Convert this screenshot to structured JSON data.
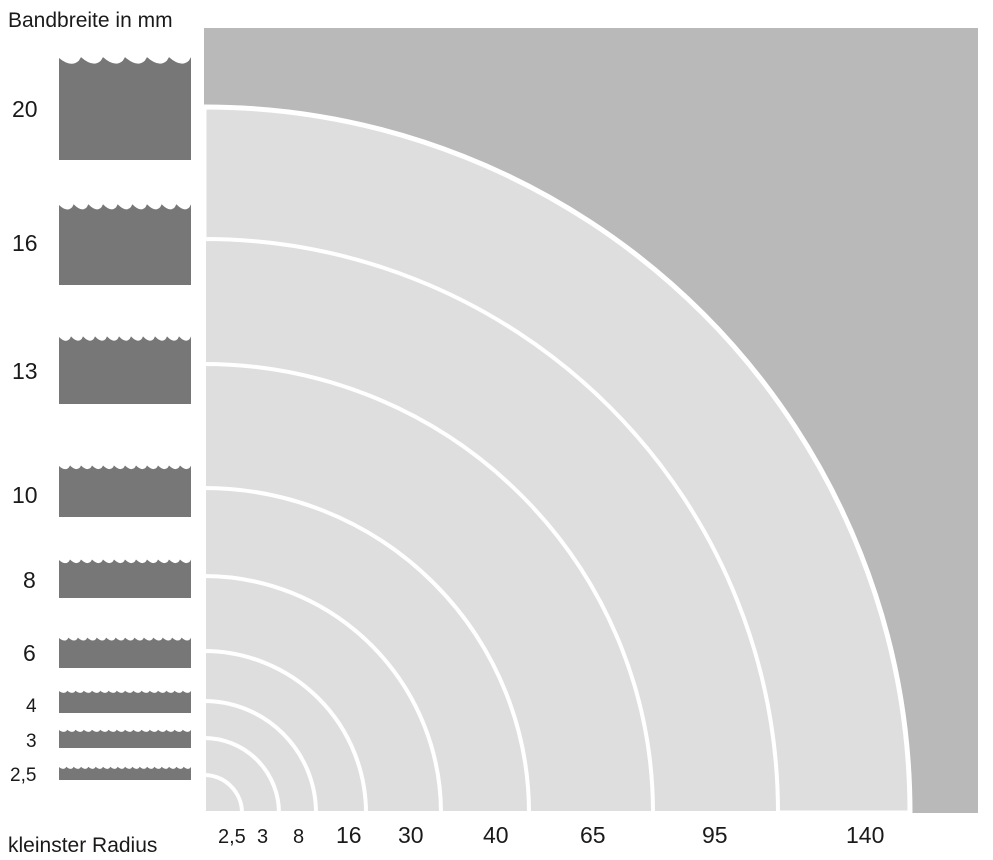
{
  "y_axis_label": "Bandbreite in mm",
  "x_axis_label": "kleinster Radius",
  "colors": {
    "background": "#ffffff",
    "outer_field": "#b9b9b9",
    "inner_field": "#dedede",
    "arc": "#ffffff",
    "blade": "#777777",
    "text": "#1a1a1a"
  },
  "blades": [
    {
      "width": "20",
      "radius": "140"
    },
    {
      "width": "16",
      "radius": "95"
    },
    {
      "width": "13",
      "radius": "65"
    },
    {
      "width": "10",
      "radius": "40"
    },
    {
      "width": "8",
      "radius": "30"
    },
    {
      "width": "6",
      "radius": "16"
    },
    {
      "width": "4",
      "radius": "8"
    },
    {
      "width": "3",
      "radius": "3"
    },
    {
      "width": "2,5",
      "radius": "2,5"
    }
  ]
}
